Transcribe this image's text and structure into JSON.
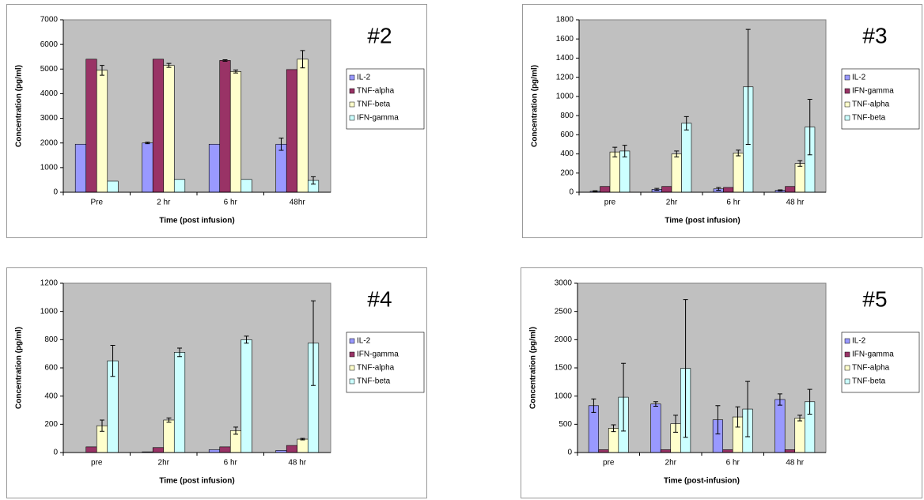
{
  "chart_data": [
    {
      "type": "bar",
      "title": "#2",
      "x_label": "Time (post infusion)",
      "y_label": "Concentration (pg/ml)",
      "categories": [
        "Pre",
        "2 hr",
        "6 hr",
        "48hr"
      ],
      "ylim": [
        0,
        7000
      ],
      "yticks": [
        0,
        1000,
        2000,
        3000,
        4000,
        5000,
        6000,
        7000
      ],
      "legend": "right",
      "series": [
        {
          "name": "IL-2",
          "color": "#9999ff",
          "values": [
            1950,
            2000,
            1950,
            1950
          ],
          "errors": [
            null,
            30,
            null,
            250
          ]
        },
        {
          "name": "TNF-alpha",
          "color": "#993366",
          "values": [
            5400,
            5400,
            5350,
            4980
          ],
          "errors": [
            null,
            null,
            30,
            null
          ]
        },
        {
          "name": "TNF-beta",
          "color": "#ffffcc",
          "values": [
            4950,
            5150,
            4900,
            5400
          ],
          "errors": [
            200,
            80,
            60,
            350
          ]
        },
        {
          "name": "IFN-gamma",
          "color": "#ccffff",
          "values": [
            450,
            520,
            520,
            480
          ],
          "errors": [
            null,
            null,
            null,
            150
          ]
        }
      ]
    },
    {
      "type": "bar",
      "title": "#3",
      "x_label": "Time (post infusion)",
      "y_label": "Concentration (pg/ml)",
      "categories": [
        "pre",
        "2hr",
        "6 hr",
        "48 hr"
      ],
      "ylim": [
        0,
        1800
      ],
      "yticks": [
        0,
        200,
        400,
        600,
        800,
        1000,
        1200,
        1400,
        1600,
        1800
      ],
      "legend": "right",
      "series": [
        {
          "name": "IL-2",
          "color": "#9999ff",
          "values": [
            10,
            30,
            35,
            20
          ],
          "errors": [
            5,
            10,
            15,
            5
          ]
        },
        {
          "name": "IFN-gamma",
          "color": "#993366",
          "values": [
            60,
            60,
            50,
            60
          ],
          "errors": [
            null,
            null,
            null,
            null
          ]
        },
        {
          "name": "TNF-alpha",
          "color": "#ffffcc",
          "values": [
            420,
            400,
            410,
            300
          ],
          "errors": [
            50,
            30,
            30,
            30
          ]
        },
        {
          "name": "TNF-beta",
          "color": "#ccffff",
          "values": [
            430,
            720,
            1100,
            680
          ],
          "errors": [
            60,
            70,
            600,
            290
          ]
        }
      ]
    },
    {
      "type": "bar",
      "title": "#4",
      "x_label": "Time (post infusion)",
      "y_label": "Concentration (pg/ml)",
      "categories": [
        "pre",
        "2hr",
        "6 hr",
        "48 hr"
      ],
      "ylim": [
        0,
        1200
      ],
      "yticks": [
        0,
        200,
        400,
        600,
        800,
        1000,
        1200
      ],
      "legend": "right",
      "series": [
        {
          "name": "IL-2",
          "color": "#9999ff",
          "values": [
            0,
            5,
            20,
            15
          ],
          "errors": [
            null,
            null,
            null,
            null
          ]
        },
        {
          "name": "IFN-gamma",
          "color": "#993366",
          "values": [
            40,
            35,
            40,
            50
          ],
          "errors": [
            null,
            null,
            null,
            null
          ]
        },
        {
          "name": "TNF-alpha",
          "color": "#ffffcc",
          "values": [
            190,
            230,
            155,
            95
          ],
          "errors": [
            40,
            15,
            25,
            5
          ]
        },
        {
          "name": "TNF-beta",
          "color": "#ccffff",
          "values": [
            650,
            710,
            800,
            775
          ],
          "errors": [
            110,
            30,
            25,
            300
          ]
        }
      ]
    },
    {
      "type": "bar",
      "title": "#5",
      "x_label": "Time (post-infusion)",
      "y_label": "Concentration (pg/ml)",
      "categories": [
        "pre",
        "2hr",
        "6 hr",
        "48 hr"
      ],
      "ylim": [
        0,
        3000
      ],
      "yticks": [
        0,
        500,
        1000,
        1500,
        2000,
        2500,
        3000
      ],
      "legend": "right",
      "series": [
        {
          "name": "IL-2",
          "color": "#9999ff",
          "values": [
            830,
            860,
            580,
            940
          ],
          "errors": [
            120,
            40,
            250,
            100
          ]
        },
        {
          "name": "IFN-gamma",
          "color": "#993366",
          "values": [
            50,
            50,
            50,
            50
          ],
          "errors": [
            null,
            null,
            null,
            null
          ]
        },
        {
          "name": "TNF-alpha",
          "color": "#ffffcc",
          "values": [
            430,
            510,
            630,
            610
          ],
          "errors": [
            60,
            150,
            180,
            50
          ]
        },
        {
          "name": "TNF-beta",
          "color": "#ccffff",
          "values": [
            980,
            1490,
            770,
            900
          ],
          "errors": [
            600,
            1220,
            490,
            220
          ]
        }
      ]
    }
  ]
}
